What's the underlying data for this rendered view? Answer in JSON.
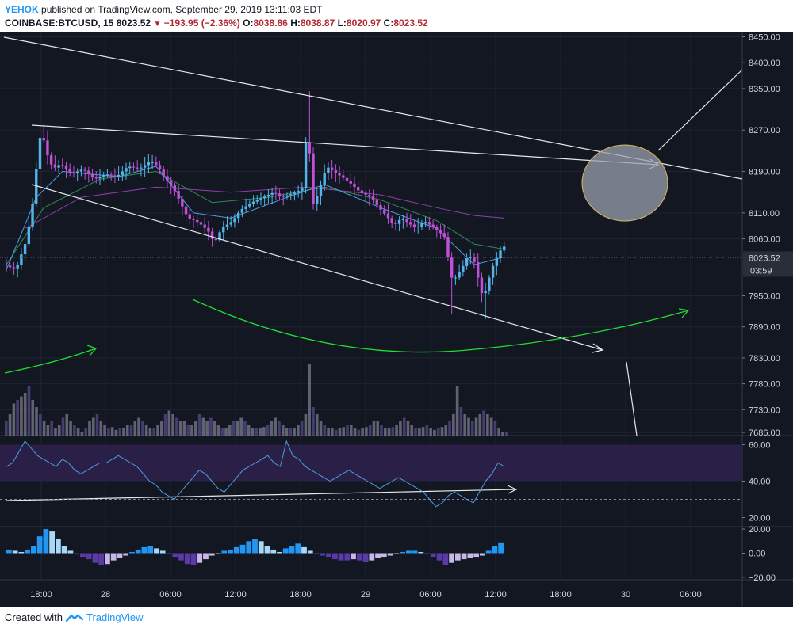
{
  "header": {
    "author": "YEHOK",
    "published_text": "published on TradingView.com, September 29, 2019 13:11:03 EDT",
    "symbol": "COINBASE:BTCUSD, 15",
    "last": "8023.52",
    "change": "−193.95 (−2.36%)",
    "o_label": "O:",
    "o_value": "8038.86",
    "h_label": "H:",
    "h_value": "8038.87",
    "l_label": "L:",
    "l_value": "8020.97",
    "c_label": "C:",
    "c_value": "8023.52"
  },
  "footer": {
    "created_with": "Created with",
    "brand": "TradingView"
  },
  "colors": {
    "background": "#131722",
    "bull": "#53b4e8",
    "bear": "#c050d8",
    "rsi_band": "#2a1f47",
    "green_arrow": "#22dd33",
    "ellipse": "#9aa0ad"
  },
  "chart_data": [
    {
      "type": "candlestick",
      "price_axis_ticks": [
        "8450.00",
        "8400.00",
        "8350.00",
        "8270.00",
        "8190.00",
        "8110.00",
        "8060.00",
        "7950.00",
        "7890.00",
        "7830.00",
        "7780.00",
        "7730.00",
        "7686.00"
      ],
      "price_tag": "8023.52",
      "countdown": "03:59",
      "time_axis_ticks": [
        "18:00",
        "28",
        "06:00",
        "12:00",
        "18:00",
        "29",
        "06:00",
        "12:00",
        "18:00",
        "30",
        "06:00"
      ],
      "ylim": [
        7680,
        8460
      ],
      "price_path": [
        [
          0,
          8010
        ],
        [
          3,
          8000
        ],
        [
          6,
          8060
        ],
        [
          8,
          8150
        ],
        [
          9,
          8240
        ],
        [
          10,
          8270
        ],
        [
          11,
          8230
        ],
        [
          13,
          8195
        ],
        [
          15,
          8205
        ],
        [
          18,
          8185
        ],
        [
          21,
          8195
        ],
        [
          24,
          8175
        ],
        [
          27,
          8185
        ],
        [
          30,
          8180
        ],
        [
          33,
          8200
        ],
        [
          36,
          8195
        ],
        [
          39,
          8210
        ],
        [
          41,
          8200
        ],
        [
          43,
          8175
        ],
        [
          45,
          8160
        ],
        [
          47,
          8130
        ],
        [
          49,
          8100
        ],
        [
          51,
          8095
        ],
        [
          53,
          8085
        ],
        [
          55,
          8070
        ],
        [
          56,
          8050
        ],
        [
          58,
          8080
        ],
        [
          61,
          8095
        ],
        [
          63,
          8115
        ],
        [
          66,
          8130
        ],
        [
          69,
          8140
        ],
        [
          72,
          8150
        ],
        [
          74,
          8140
        ],
        [
          76,
          8145
        ],
        [
          78,
          8150
        ],
        [
          80,
          8160
        ],
        [
          81,
          8330
        ],
        [
          82,
          8120
        ],
        [
          84,
          8150
        ],
        [
          86,
          8200
        ],
        [
          89,
          8185
        ],
        [
          92,
          8170
        ],
        [
          95,
          8150
        ],
        [
          98,
          8140
        ],
        [
          100,
          8120
        ],
        [
          102,
          8105
        ],
        [
          104,
          8085
        ],
        [
          106,
          8100
        ],
        [
          108,
          8090
        ],
        [
          110,
          8080
        ],
        [
          112,
          8095
        ],
        [
          114,
          8085
        ],
        [
          116,
          8075
        ],
        [
          118,
          8060
        ],
        [
          119,
          7990
        ],
        [
          120,
          7980
        ],
        [
          122,
          8000
        ],
        [
          124,
          8030
        ],
        [
          126,
          8010
        ],
        [
          127,
          7960
        ],
        [
          128,
          7950
        ],
        [
          129,
          7970
        ],
        [
          130,
          8000
        ],
        [
          132,
          8030
        ],
        [
          133,
          8045
        ]
      ],
      "ma_fast_points": [
        [
          0,
          8000
        ],
        [
          8,
          8140
        ],
        [
          15,
          8190
        ],
        [
          30,
          8180
        ],
        [
          40,
          8200
        ],
        [
          50,
          8110
        ],
        [
          60,
          8100
        ],
        [
          75,
          8140
        ],
        [
          85,
          8165
        ],
        [
          100,
          8120
        ],
        [
          115,
          8080
        ],
        [
          125,
          8010
        ],
        [
          133,
          8025
        ]
      ],
      "ma_mid_points": [
        [
          0,
          8010
        ],
        [
          10,
          8120
        ],
        [
          25,
          8175
        ],
        [
          40,
          8190
        ],
        [
          55,
          8130
        ],
        [
          70,
          8140
        ],
        [
          85,
          8160
        ],
        [
          100,
          8135
        ],
        [
          115,
          8095
        ],
        [
          125,
          8050
        ],
        [
          133,
          8040
        ]
      ],
      "ma_slow_points": [
        [
          5,
          8080
        ],
        [
          20,
          8140
        ],
        [
          40,
          8160
        ],
        [
          60,
          8150
        ],
        [
          80,
          8160
        ],
        [
          100,
          8145
        ],
        [
          115,
          8120
        ],
        [
          125,
          8105
        ],
        [
          133,
          8100
        ]
      ]
    },
    {
      "type": "bar",
      "name": "volume",
      "values": [
        0.2,
        0.3,
        0.45,
        0.5,
        0.55,
        0.6,
        0.7,
        0.5,
        0.4,
        0.3,
        0.2,
        0.15,
        0.2,
        0.1,
        0.15,
        0.25,
        0.3,
        0.2,
        0.15,
        0.1,
        0.05,
        0.1,
        0.2,
        0.25,
        0.3,
        0.2,
        0.15,
        0.1,
        0.12,
        0.08,
        0.1,
        0.1,
        0.15,
        0.15,
        0.2,
        0.25,
        0.2,
        0.15,
        0.1,
        0.1,
        0.15,
        0.2,
        0.3,
        0.35,
        0.3,
        0.25,
        0.2,
        0.2,
        0.15,
        0.15,
        0.2,
        0.3,
        0.25,
        0.2,
        0.25,
        0.2,
        0.15,
        0.1,
        0.1,
        0.15,
        0.2,
        0.2,
        0.25,
        0.2,
        0.15,
        0.1,
        0.1,
        0.1,
        0.12,
        0.15,
        0.2,
        0.25,
        0.2,
        0.15,
        0.1,
        0.1,
        0.1,
        0.15,
        0.2,
        0.3,
        1.0,
        0.4,
        0.3,
        0.2,
        0.15,
        0.1,
        0.1,
        0.08,
        0.1,
        0.12,
        0.15,
        0.15,
        0.1,
        0.08,
        0.1,
        0.12,
        0.15,
        0.2,
        0.2,
        0.15,
        0.1,
        0.1,
        0.12,
        0.15,
        0.2,
        0.25,
        0.2,
        0.15,
        0.1,
        0.1,
        0.12,
        0.15,
        0.1,
        0.08,
        0.1,
        0.12,
        0.15,
        0.2,
        0.3,
        0.7,
        0.4,
        0.3,
        0.25,
        0.2,
        0.25,
        0.3,
        0.35,
        0.3,
        0.25,
        0.2,
        0.1,
        0.05,
        0.05
      ]
    },
    {
      "type": "line",
      "name": "RSI",
      "axis_ticks": [
        "60.00",
        "40.00",
        "20.00"
      ],
      "ylim": [
        15,
        65
      ],
      "values": [
        48,
        50,
        56,
        62,
        58,
        54,
        52,
        50,
        48,
        52,
        50,
        46,
        44,
        46,
        48,
        50,
        50,
        52,
        54,
        52,
        50,
        48,
        44,
        40,
        38,
        34,
        32,
        30,
        34,
        38,
        42,
        46,
        44,
        40,
        36,
        34,
        38,
        42,
        46,
        48,
        50,
        52,
        54,
        50,
        48,
        62,
        54,
        52,
        48,
        46,
        44,
        42,
        40,
        42,
        44,
        46,
        44,
        42,
        40,
        38,
        36,
        38,
        40,
        42,
        40,
        38,
        36,
        34,
        30,
        26,
        28,
        32,
        34,
        32,
        30,
        28,
        34,
        40,
        44,
        50,
        48
      ]
    },
    {
      "type": "bar",
      "name": "histogram",
      "axis_ticks": [
        "20.00",
        "0.00",
        "−20.00"
      ],
      "ylim": [
        -22,
        22
      ],
      "values": [
        3,
        2,
        1,
        3,
        6,
        14,
        20,
        18,
        12,
        6,
        2,
        -1,
        -3,
        -5,
        -8,
        -10,
        -9,
        -6,
        -4,
        -2,
        1,
        3,
        5,
        6,
        4,
        2,
        -1,
        -3,
        -6,
        -9,
        -10,
        -8,
        -5,
        -2,
        -1,
        2,
        3,
        5,
        7,
        10,
        12,
        10,
        6,
        3,
        1,
        4,
        6,
        8,
        5,
        2,
        -1,
        -2,
        -3,
        -5,
        -6,
        -6,
        -5,
        -6,
        -7,
        -6,
        -4,
        -3,
        -2,
        -1,
        1,
        2,
        2,
        1,
        -1,
        -3,
        -6,
        -10,
        -8,
        -6,
        -5,
        -4,
        -3,
        -2,
        2,
        6,
        9
      ]
    }
  ]
}
